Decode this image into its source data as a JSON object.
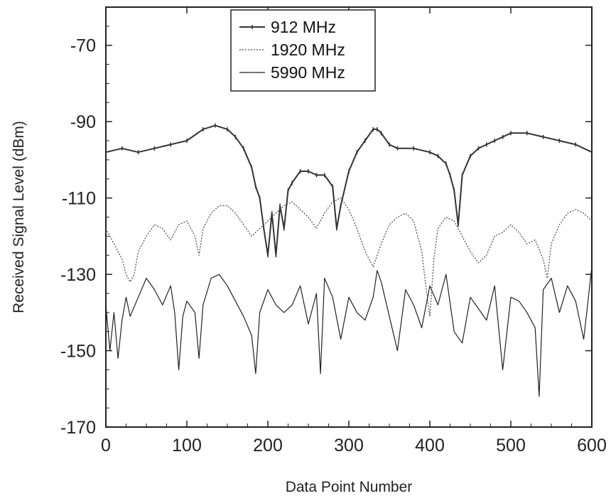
{
  "chart_data": {
    "type": "line",
    "title": "",
    "xlabel": "Data Point Number",
    "ylabel": "Received Signal Level (dBm)",
    "xlim": [
      0,
      600
    ],
    "ylim": [
      -170,
      -60
    ],
    "x_ticks": [
      0,
      100,
      200,
      300,
      400,
      500,
      600
    ],
    "y_ticks": [
      -70,
      -90,
      -110,
      -130,
      -150,
      -170
    ],
    "grid": false,
    "legend_position": "top-center",
    "series": [
      {
        "name": "912 MHz",
        "color": "#333333",
        "style": "solid-marked",
        "x": [
          0,
          20,
          40,
          60,
          80,
          100,
          120,
          135,
          150,
          160,
          170,
          180,
          185,
          190,
          195,
          200,
          205,
          210,
          215,
          220,
          225,
          230,
          240,
          250,
          260,
          270,
          280,
          285,
          290,
          300,
          310,
          320,
          330,
          335,
          340,
          350,
          360,
          380,
          400,
          410,
          420,
          425,
          430,
          435,
          440,
          450,
          460,
          470,
          480,
          490,
          500,
          520,
          540,
          560,
          580,
          600
        ],
        "y": [
          -98,
          -97,
          -98,
          -97,
          -96,
          -95,
          -92,
          -91,
          -92,
          -94,
          -97,
          -102,
          -107,
          -110,
          -118,
          -125,
          -114,
          -125,
          -112,
          -118,
          -108,
          -106,
          -103,
          -103,
          -104,
          -104,
          -107,
          -118,
          -112,
          -103,
          -98,
          -95,
          -92,
          -92,
          -93,
          -96,
          -97,
          -97,
          -98,
          -99,
          -101,
          -104,
          -108,
          -117,
          -104,
          -99,
          -97,
          -96,
          -95,
          -94,
          -93,
          -93,
          -94,
          -95,
          -96,
          -98
        ]
      },
      {
        "name": "1920 MHz",
        "color": "#444444",
        "style": "dotted",
        "x": [
          0,
          10,
          20,
          25,
          30,
          35,
          40,
          50,
          60,
          70,
          80,
          90,
          100,
          110,
          115,
          120,
          130,
          140,
          150,
          160,
          170,
          180,
          190,
          200,
          210,
          220,
          230,
          240,
          250,
          260,
          270,
          280,
          290,
          300,
          310,
          320,
          330,
          340,
          350,
          360,
          370,
          380,
          390,
          395,
          400,
          405,
          410,
          420,
          430,
          440,
          450,
          460,
          470,
          480,
          490,
          500,
          510,
          520,
          530,
          540,
          545,
          550,
          560,
          570,
          580,
          590,
          600
        ],
        "y": [
          -118,
          -122,
          -126,
          -130,
          -132,
          -130,
          -124,
          -120,
          -117,
          -118,
          -121,
          -117,
          -116,
          -120,
          -125,
          -118,
          -114,
          -112,
          -112,
          -114,
          -117,
          -120,
          -118,
          -116,
          -114,
          -112,
          -111,
          -113,
          -115,
          -118,
          -114,
          -111,
          -110,
          -113,
          -118,
          -124,
          -128,
          -122,
          -117,
          -115,
          -114,
          -116,
          -124,
          -133,
          -141,
          -126,
          -118,
          -115,
          -116,
          -120,
          -124,
          -127,
          -125,
          -120,
          -119,
          -117,
          -119,
          -122,
          -121,
          -126,
          -131,
          -122,
          -117,
          -114,
          -113,
          -114,
          -116
        ]
      },
      {
        "name": "5990 MHz",
        "color": "#222222",
        "style": "solid",
        "x": [
          0,
          5,
          10,
          15,
          20,
          25,
          30,
          40,
          50,
          60,
          70,
          80,
          85,
          90,
          95,
          100,
          110,
          115,
          120,
          130,
          140,
          150,
          160,
          170,
          180,
          185,
          190,
          200,
          210,
          220,
          230,
          240,
          250,
          260,
          265,
          270,
          280,
          290,
          300,
          310,
          320,
          330,
          335,
          340,
          350,
          360,
          370,
          380,
          390,
          400,
          410,
          420,
          430,
          440,
          450,
          460,
          470,
          480,
          490,
          500,
          510,
          520,
          530,
          535,
          540,
          550,
          560,
          570,
          580,
          590,
          600
        ],
        "y": [
          -138,
          -150,
          -140,
          -152,
          -142,
          -136,
          -141,
          -136,
          -131,
          -134,
          -138,
          -133,
          -140,
          -155,
          -141,
          -137,
          -140,
          -152,
          -138,
          -131,
          -130,
          -133,
          -137,
          -141,
          -146,
          -156,
          -140,
          -134,
          -138,
          -140,
          -138,
          -133,
          -143,
          -135,
          -156,
          -131,
          -136,
          -147,
          -136,
          -140,
          -142,
          -136,
          -129,
          -132,
          -141,
          -150,
          -134,
          -138,
          -144,
          -133,
          -138,
          -130,
          -145,
          -148,
          -136,
          -139,
          -142,
          -133,
          -155,
          -136,
          -137,
          -140,
          -144,
          -162,
          -134,
          -131,
          -140,
          -133,
          -137,
          -147,
          -128
        ]
      }
    ]
  }
}
